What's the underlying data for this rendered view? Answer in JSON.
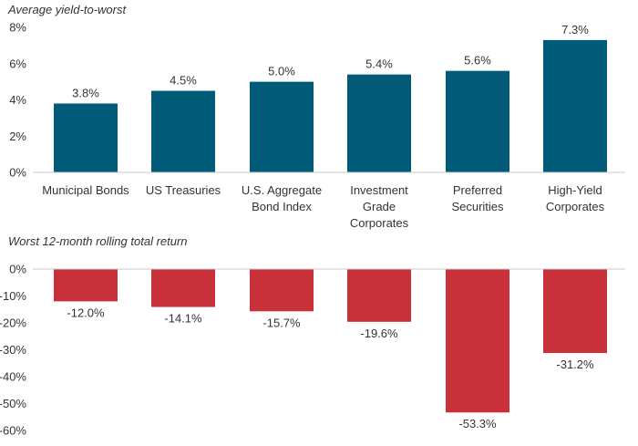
{
  "chart_data": [
    {
      "type": "bar",
      "title": "Average yield-to-worst",
      "categories": [
        [
          "Municipal Bonds"
        ],
        [
          "US Treasuries"
        ],
        [
          "U.S. Aggregate",
          "Bond Index"
        ],
        [
          "Investment",
          "Grade",
          "Corporates"
        ],
        [
          "Preferred",
          "Securities"
        ],
        [
          "High-Yield",
          "Corporates"
        ]
      ],
      "values": [
        3.8,
        4.5,
        5.0,
        5.4,
        5.6,
        7.3
      ],
      "data_labels": [
        "3.8%",
        "4.5%",
        "5.0%",
        "5.4%",
        "5.6%",
        "7.3%"
      ],
      "yticks": [
        0,
        2,
        4,
        6,
        8
      ],
      "ytick_labels": [
        "0%",
        "2%",
        "4%",
        "6%",
        "8%"
      ],
      "ylim": [
        0,
        8
      ],
      "color": "#005a78",
      "xlabel": "",
      "ylabel": ""
    },
    {
      "type": "bar",
      "title": "Worst 12-month rolling total return",
      "categories": [
        [
          "Municipal Bonds"
        ],
        [
          "US Treasuries"
        ],
        [
          "U.S. Aggregate",
          "Bond Index"
        ],
        [
          "Investment",
          "Grade",
          "Corporates"
        ],
        [
          "Preferred",
          "Securities"
        ],
        [
          "High-Yield",
          "Corporates"
        ]
      ],
      "values": [
        -12.0,
        -14.1,
        -15.7,
        -19.6,
        -53.3,
        -31.2
      ],
      "data_labels": [
        "-12.0%",
        "-14.1%",
        "-15.7%",
        "-19.6%",
        "-53.3%",
        "-31.2%"
      ],
      "yticks": [
        0,
        -10,
        -20,
        -30,
        -40,
        -50,
        -60
      ],
      "ytick_labels": [
        "0%",
        "-10%",
        "-20%",
        "-30%",
        "-40%",
        "-50%",
        "-60%"
      ],
      "ylim": [
        -60,
        0
      ],
      "color": "#c8313a",
      "xlabel": "",
      "ylabel": ""
    }
  ]
}
